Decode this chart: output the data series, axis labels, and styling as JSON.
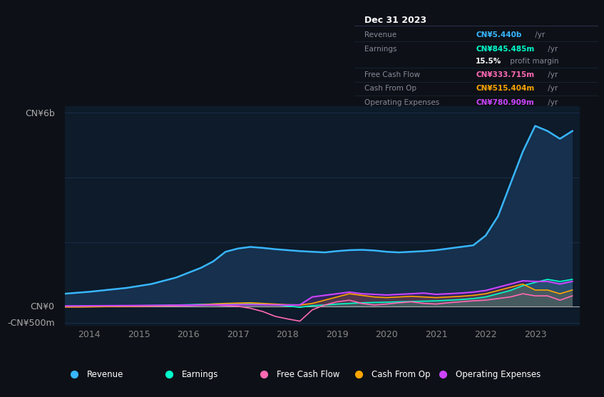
{
  "bg_color": "#0d1117",
  "plot_bg_color": "#0d1b2a",
  "grid_color": "#1e3050",
  "title_date": "Dec 31 2023",
  "ylabel_top": "CN¥6b",
  "ylabel_zero": "CN¥0",
  "ylabel_neg": "-CN¥500m",
  "x_ticks": [
    2014,
    2015,
    2016,
    2017,
    2018,
    2019,
    2020,
    2021,
    2022,
    2023
  ],
  "revenue_color": "#38b6ff",
  "earnings_color": "#00ffcc",
  "fcf_color": "#ff69b4",
  "cashfromop_color": "#ffa500",
  "opex_color": "#cc44ff",
  "revenue_fill": "#1a3a5c",
  "opex_fill": "#4a1a6a",
  "legend": [
    {
      "label": "Revenue",
      "color": "#38b6ff"
    },
    {
      "label": "Earnings",
      "color": "#00ffcc"
    },
    {
      "label": "Free Cash Flow",
      "color": "#ff69b4"
    },
    {
      "label": "Cash From Op",
      "color": "#ffa500"
    },
    {
      "label": "Operating Expenses",
      "color": "#cc44ff"
    }
  ],
  "info_rows": [
    {
      "label": "Revenue",
      "value": "CN¥5.440b",
      "suffix": " /yr",
      "color": "#38b6ff"
    },
    {
      "label": "Earnings",
      "value": "CN¥845.485m",
      "suffix": " /yr",
      "color": "#00ffcc"
    },
    {
      "label": "",
      "value": "15.5%",
      "suffix": " profit margin",
      "color": "#ffffff"
    },
    {
      "label": "Free Cash Flow",
      "value": "CN¥333.715m",
      "suffix": " /yr",
      "color": "#ff69b4"
    },
    {
      "label": "Cash From Op",
      "value": "CN¥515.404m",
      "suffix": " /yr",
      "color": "#ffa500"
    },
    {
      "label": "Operating Expenses",
      "value": "CN¥780.909m",
      "suffix": " /yr",
      "color": "#cc44ff"
    }
  ]
}
